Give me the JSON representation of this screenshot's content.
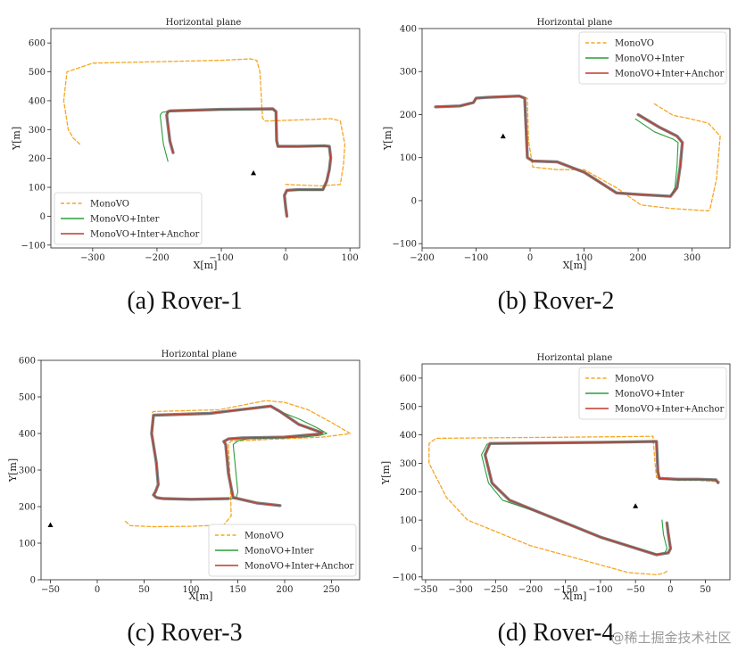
{
  "colors": {
    "monovo": "#f5a623",
    "inter": "#2a9d3a",
    "anchor": "#c0392b",
    "overlap": "#6b6b6b"
  },
  "watermark": "@稀土掘金技术社区",
  "chart_data": [
    {
      "id": "a",
      "type": "line",
      "caption": "(a) Rover-1",
      "title": "Horizontal plane",
      "xlabel": "X[m]",
      "ylabel": "Y[m]",
      "xlim": [
        -365,
        115
      ],
      "ylim": [
        -110,
        650
      ],
      "xticks": [
        -300,
        -200,
        -100,
        0,
        100
      ],
      "yticks": [
        -100,
        0,
        100,
        200,
        300,
        400,
        500,
        600
      ],
      "legend": "lower-left",
      "marker": [
        -50,
        150
      ],
      "series": [
        {
          "name": "MonoVO",
          "style": "monovo",
          "x": [
            -320,
            -330,
            -338,
            -345,
            -340,
            -300,
            -200,
            -100,
            -55,
            -45,
            -40,
            -38,
            -36,
            -32,
            -25,
            0,
            40,
            70,
            85,
            92,
            90,
            85,
            55,
            20,
            0
          ],
          "y": [
            250,
            270,
            300,
            400,
            500,
            530,
            535,
            540,
            545,
            540,
            500,
            420,
            340,
            330,
            330,
            332,
            335,
            338,
            330,
            250,
            180,
            110,
            105,
            108,
            110
          ]
        },
        {
          "name": "MonoVO+Inter",
          "style": "inter",
          "x": [
            -183,
            -190,
            -195,
            -192,
            -185,
            -100,
            -20,
            -15,
            -14,
            -12,
            -5,
            20,
            60,
            68,
            70,
            68,
            64,
            58,
            20,
            2,
            -2,
            0,
            2
          ],
          "y": [
            190,
            250,
            350,
            360,
            362,
            368,
            370,
            360,
            260,
            240,
            240,
            240,
            242,
            240,
            200,
            160,
            120,
            90,
            90,
            88,
            70,
            30,
            0
          ]
        },
        {
          "name": "MonoVO+Inter+Anchor",
          "style": "anchor",
          "x": [
            -175,
            -180,
            -185,
            -183,
            -180,
            -100,
            -20,
            -15,
            -14,
            -12,
            -5,
            20,
            60,
            68,
            70,
            68,
            64,
            58,
            20,
            2,
            -2,
            0,
            2
          ],
          "y": [
            220,
            260,
            350,
            362,
            365,
            370,
            372,
            362,
            262,
            242,
            242,
            242,
            244,
            242,
            202,
            162,
            122,
            92,
            92,
            90,
            72,
            32,
            0
          ]
        }
      ]
    },
    {
      "id": "b",
      "type": "line",
      "caption": "(b) Rover-2",
      "title": "Horizontal plane",
      "xlabel": "X[m]",
      "ylabel": "Y[m]",
      "xlim": [
        -200,
        370
      ],
      "ylim": [
        -110,
        400
      ],
      "xticks": [
        -200,
        -100,
        0,
        100,
        200,
        300
      ],
      "yticks": [
        -100,
        0,
        100,
        200,
        300,
        400
      ],
      "legend": "top-right",
      "marker": [
        -50,
        150
      ],
      "series": [
        {
          "name": "MonoVO",
          "style": "monovo",
          "x": [
            -175,
            -130,
            -105,
            -100,
            -80,
            -20,
            -5,
            -3,
            5,
            50,
            100,
            160,
            205,
            260,
            330,
            333,
            345,
            352,
            330,
            290,
            265,
            230
          ],
          "y": [
            218,
            220,
            228,
            238,
            240,
            243,
            238,
            140,
            78,
            72,
            72,
            30,
            -10,
            -18,
            -24,
            -20,
            50,
            150,
            180,
            192,
            198,
            225
          ]
        },
        {
          "name": "MonoVO+Inter",
          "style": "inter",
          "x": [
            -175,
            -130,
            -105,
            -100,
            -80,
            -20,
            -10,
            -5,
            5,
            50,
            100,
            160,
            205,
            260,
            268,
            272,
            274,
            265,
            230,
            195
          ],
          "y": [
            218,
            220,
            228,
            238,
            240,
            243,
            238,
            100,
            92,
            90,
            66,
            18,
            14,
            10,
            30,
            80,
            135,
            143,
            160,
            190
          ]
        },
        {
          "name": "MonoVO+Inter+Anchor",
          "style": "anchor",
          "x": [
            -175,
            -130,
            -105,
            -100,
            -80,
            -20,
            -10,
            -5,
            5,
            50,
            100,
            160,
            205,
            260,
            272,
            278,
            282,
            272,
            240,
            200
          ],
          "y": [
            218,
            220,
            228,
            238,
            240,
            243,
            238,
            100,
            92,
            90,
            66,
            18,
            14,
            10,
            30,
            80,
            135,
            150,
            170,
            200
          ]
        }
      ]
    },
    {
      "id": "c",
      "type": "line",
      "caption": "(c) Rover-3",
      "title": "Horizontal plane",
      "xlabel": "X[m]",
      "ylabel": "Y[m]",
      "xlim": [
        -60,
        280
      ],
      "ylim": [
        0,
        600
      ],
      "xticks": [
        -50,
        0,
        50,
        100,
        150,
        200,
        250
      ],
      "yticks": [
        0,
        100,
        200,
        300,
        400,
        500,
        600
      ],
      "legend": "lower-right",
      "marker": [
        -50,
        150
      ],
      "series": [
        {
          "name": "MonoVO",
          "style": "monovo",
          "x": [
            30,
            35,
            60,
            100,
            135,
            143,
            142,
            140,
            143,
            150,
            240,
            265,
            270,
            250,
            225,
            200,
            180,
            130,
            60,
            57
          ],
          "y": [
            160,
            148,
            145,
            146,
            150,
            175,
            260,
            370,
            380,
            380,
            390,
            398,
            400,
            430,
            465,
            485,
            490,
            465,
            460,
            455
          ]
        },
        {
          "name": "MonoVO+Inter",
          "style": "inter",
          "x": [
            60,
            65,
            100,
            148,
            150,
            145,
            150,
            160,
            220,
            238,
            245,
            235,
            215,
            195,
            185,
            120,
            60,
            58,
            63,
            65,
            62,
            60
          ],
          "y": [
            232,
            222,
            220,
            222,
            240,
            370,
            380,
            385,
            390,
            395,
            400,
            415,
            440,
            460,
            475,
            455,
            450,
            400,
            320,
            260,
            240,
            232
          ]
        },
        {
          "name": "MonoVO+Inter+Anchor",
          "style": "anchor",
          "x": [
            195,
            170,
            145,
            140,
            137,
            135,
            140,
            155,
            200,
            235,
            240,
            215,
            195,
            185,
            120,
            60,
            58,
            63,
            65,
            62,
            60,
            63,
            70,
            100,
            140
          ],
          "y": [
            203,
            210,
            225,
            290,
            370,
            378,
            385,
            388,
            390,
            398,
            402,
            425,
            460,
            475,
            455,
            450,
            400,
            320,
            260,
            240,
            232,
            225,
            222,
            220,
            222
          ]
        }
      ]
    },
    {
      "id": "d",
      "type": "line",
      "caption": "(d) Rover-4",
      "title": "Horizontal plane",
      "xlabel": "X[m]",
      "ylabel": "Y[m]",
      "xlim": [
        -355,
        85
      ],
      "ylim": [
        -110,
        650
      ],
      "xticks": [
        -350,
        -300,
        -250,
        -200,
        -150,
        -100,
        -50,
        0,
        50
      ],
      "yticks": [
        -100,
        0,
        100,
        200,
        300,
        400,
        500,
        600
      ],
      "legend": "top-right",
      "marker": [
        -50,
        150
      ],
      "series": [
        {
          "name": "MonoVO",
          "style": "monovo",
          "x": [
            -5,
            -8,
            -15,
            -20,
            -60,
            -200,
            -290,
            -320,
            -345,
            -345,
            -335,
            -250,
            -150,
            -25,
            -22,
            -20,
            10,
            40,
            70
          ],
          "y": [
            -80,
            -85,
            -90,
            -92,
            -85,
            10,
            100,
            180,
            300,
            370,
            388,
            390,
            392,
            395,
            300,
            250,
            240,
            240,
            235
          ]
        },
        {
          "name": "MonoVO+Inter",
          "style": "inter",
          "x": [
            -12,
            -10,
            -5,
            -8,
            -20,
            -100,
            -180,
            -240,
            -260,
            -270,
            -262,
            -100,
            -20,
            -18,
            -16,
            10,
            40,
            65,
            68
          ],
          "y": [
            100,
            50,
            0,
            -15,
            -20,
            40,
            120,
            170,
            230,
            330,
            368,
            372,
            375,
            270,
            245,
            242,
            242,
            240,
            230
          ]
        },
        {
          "name": "MonoVO+Inter+Anchor",
          "style": "anchor",
          "x": [
            -5,
            -3,
            0,
            -3,
            -20,
            -100,
            -180,
            -230,
            -255,
            -265,
            -258,
            -100,
            -20,
            -18,
            -16,
            10,
            40,
            65,
            68
          ],
          "y": [
            90,
            50,
            0,
            -15,
            -22,
            40,
            120,
            170,
            230,
            330,
            370,
            374,
            377,
            272,
            247,
            244,
            244,
            242,
            232
          ]
        }
      ]
    }
  ]
}
